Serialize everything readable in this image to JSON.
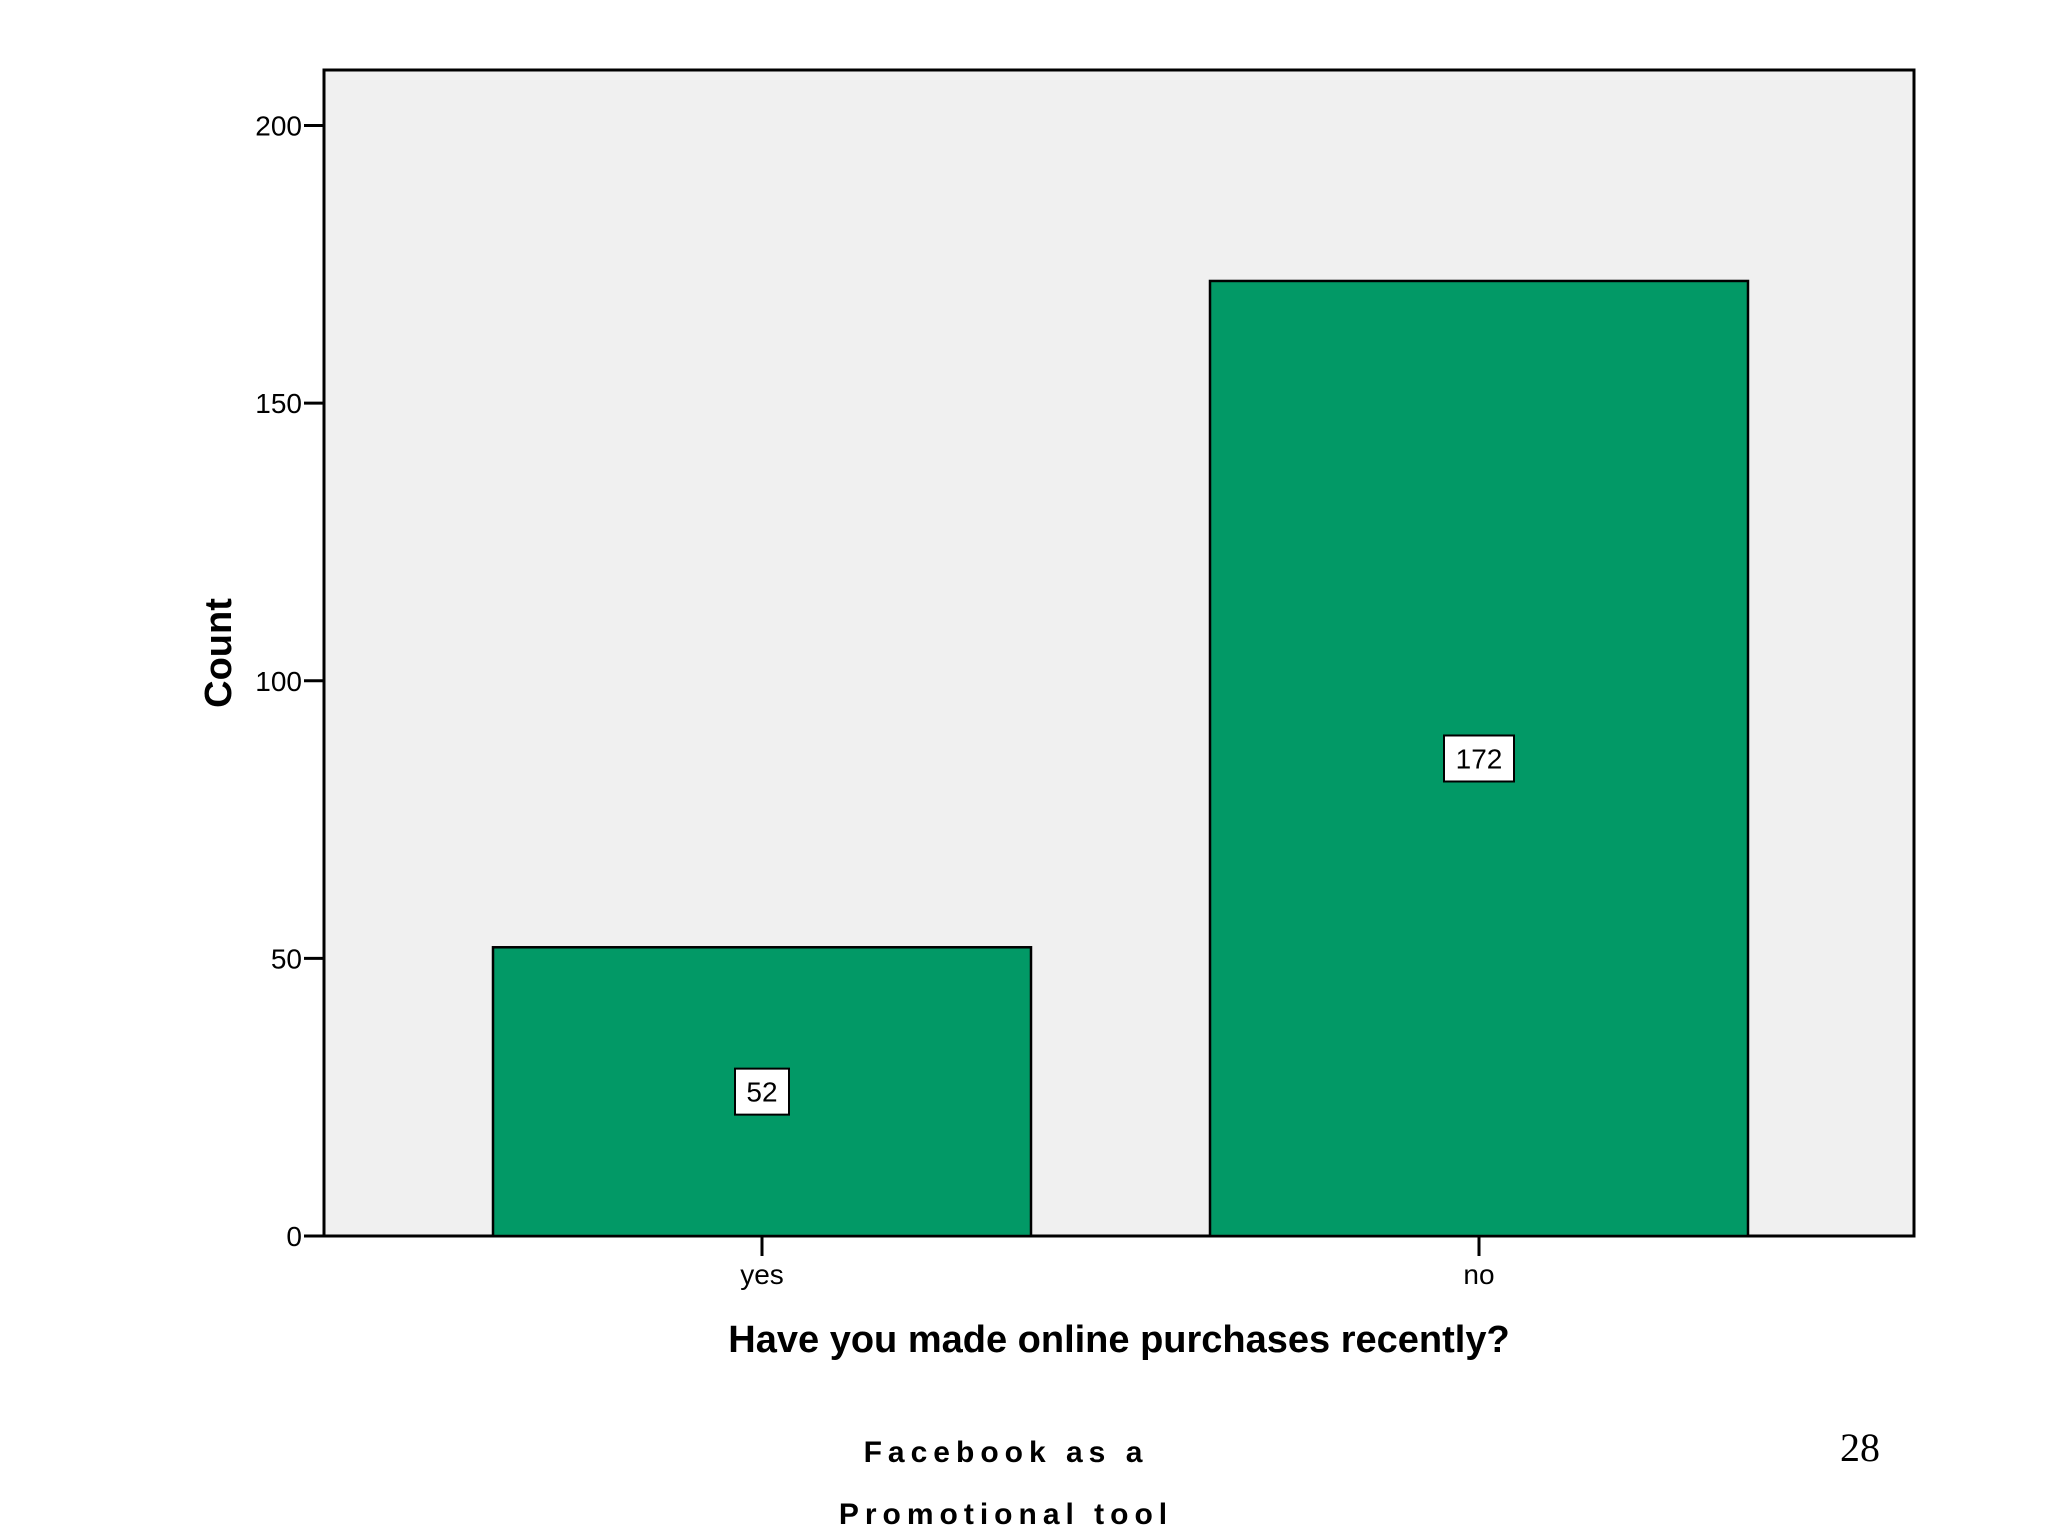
{
  "chart_data": {
    "type": "bar",
    "categories": [
      "yes",
      "no"
    ],
    "values": [
      52,
      172
    ],
    "data_labels": [
      "52",
      "172"
    ],
    "title": "",
    "xlabel": "Have you made online purchases recently?",
    "ylabel": "Count",
    "ylim": [
      0,
      210
    ],
    "yticks": [
      0,
      50,
      100,
      150,
      200
    ],
    "ytick_labels": [
      "0",
      "50",
      "100",
      "150",
      "200"
    ],
    "grid": false,
    "legend": "none",
    "colors": {
      "bar_fill": "#029966",
      "plot_background": "#f0f0f0",
      "axis": "#000000"
    }
  },
  "footer": {
    "line1": "Facebook as a",
    "line2": "Promotional tool"
  },
  "page_number": "28"
}
